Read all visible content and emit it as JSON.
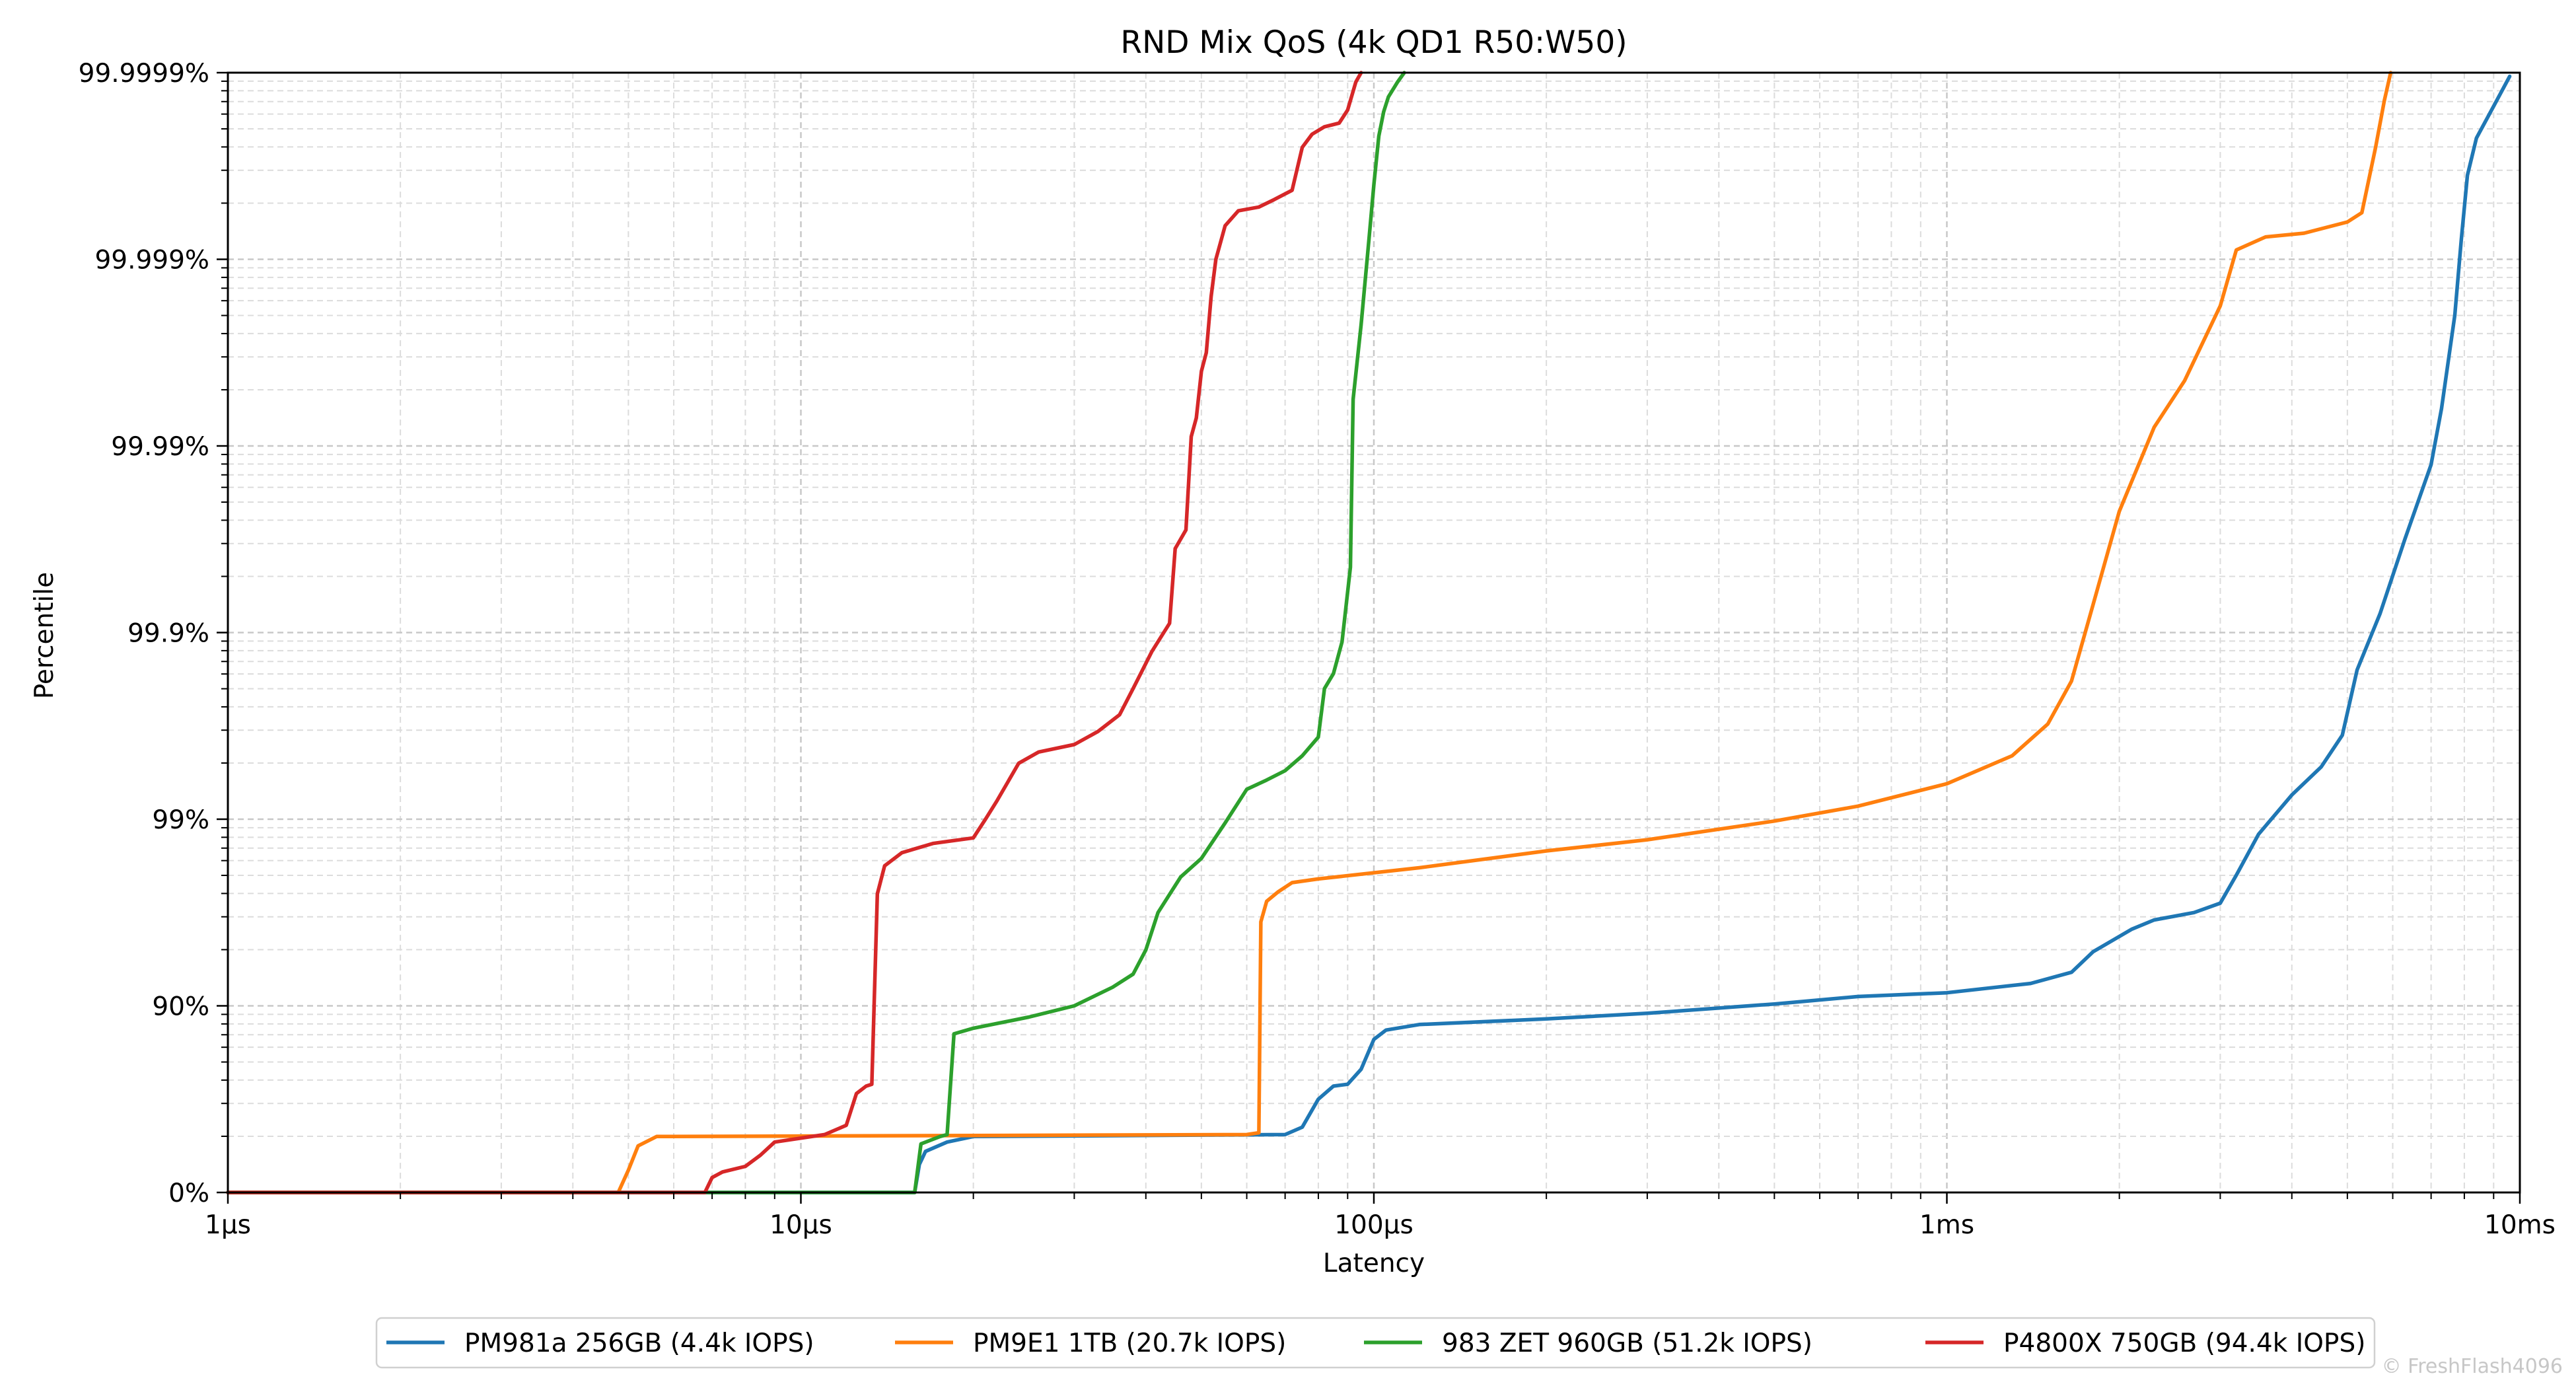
{
  "chart_data": {
    "type": "line",
    "title": "RND Mix QoS (4k QD1 R50:W50)",
    "xlabel": "Latency",
    "ylabel": "Percentile",
    "x_scale": "log",
    "y_scale": "logit-nines",
    "x_unit": "microseconds",
    "xlim": [
      1,
      10000
    ],
    "ylim_nines": [
      0,
      6
    ],
    "grid": true,
    "legend": "bottom-center",
    "x_ticks": [
      {
        "value": 1,
        "label": "1µs"
      },
      {
        "value": 10,
        "label": "10µs"
      },
      {
        "value": 100,
        "label": "100µs"
      },
      {
        "value": 1000,
        "label": "1ms"
      },
      {
        "value": 10000,
        "label": "10ms"
      }
    ],
    "y_ticks": [
      {
        "value": 0,
        "label": "0%"
      },
      {
        "value": 1,
        "label": "90%"
      },
      {
        "value": 2,
        "label": "99%"
      },
      {
        "value": 3,
        "label": "99.9%"
      },
      {
        "value": 4,
        "label": "99.99%"
      },
      {
        "value": 5,
        "label": "99.999%"
      },
      {
        "value": 6,
        "label": "99.9999%"
      }
    ],
    "series": [
      {
        "name": "PM981a 256GB (4.4k IOPS)",
        "color": "#1f77b4",
        "points": [
          [
            1,
            0
          ],
          [
            15.8,
            0
          ],
          [
            16.1,
            0.15
          ],
          [
            16.5,
            0.22
          ],
          [
            18,
            0.27
          ],
          [
            20,
            0.3
          ],
          [
            70,
            0.31
          ],
          [
            75,
            0.35
          ],
          [
            80,
            0.5
          ],
          [
            85,
            0.57
          ],
          [
            90,
            0.58
          ],
          [
            95,
            0.66
          ],
          [
            100,
            0.82
          ],
          [
            105,
            0.87
          ],
          [
            120,
            0.9
          ],
          [
            200,
            0.93
          ],
          [
            300,
            0.96
          ],
          [
            500,
            1.01
          ],
          [
            700,
            1.05
          ],
          [
            1000,
            1.07
          ],
          [
            1400,
            1.12
          ],
          [
            1650,
            1.18
          ],
          [
            1800,
            1.29
          ],
          [
            2100,
            1.41
          ],
          [
            2300,
            1.46
          ],
          [
            2700,
            1.5
          ],
          [
            3000,
            1.55
          ],
          [
            3200,
            1.7
          ],
          [
            3500,
            1.92
          ],
          [
            4000,
            2.13
          ],
          [
            4500,
            2.28
          ],
          [
            4900,
            2.45
          ],
          [
            5200,
            2.8
          ],
          [
            5700,
            3.1
          ],
          [
            6300,
            3.5
          ],
          [
            7000,
            3.9
          ],
          [
            7300,
            4.2
          ],
          [
            7700,
            4.7
          ],
          [
            7900,
            5.1
          ],
          [
            8100,
            5.45
          ],
          [
            8400,
            5.65
          ],
          [
            9000,
            5.82
          ],
          [
            9600,
            5.98
          ]
        ]
      },
      {
        "name": "PM9E1 1TB (20.7k IOPS)",
        "color": "#ff7f0e",
        "points": [
          [
            1,
            0
          ],
          [
            4.8,
            0
          ],
          [
            5,
            0.12
          ],
          [
            5.2,
            0.25
          ],
          [
            5.6,
            0.3
          ],
          [
            60,
            0.31
          ],
          [
            63,
            0.32
          ],
          [
            63.5,
            1.45
          ],
          [
            65,
            1.56
          ],
          [
            68,
            1.61
          ],
          [
            72,
            1.66
          ],
          [
            80,
            1.68
          ],
          [
            120,
            1.74
          ],
          [
            200,
            1.83
          ],
          [
            300,
            1.89
          ],
          [
            500,
            1.99
          ],
          [
            700,
            2.07
          ],
          [
            1000,
            2.19
          ],
          [
            1300,
            2.34
          ],
          [
            1500,
            2.51
          ],
          [
            1650,
            2.74
          ],
          [
            1800,
            3.15
          ],
          [
            2000,
            3.65
          ],
          [
            2300,
            4.1
          ],
          [
            2600,
            4.35
          ],
          [
            3000,
            4.75
          ],
          [
            3200,
            5.05
          ],
          [
            3600,
            5.12
          ],
          [
            4200,
            5.14
          ],
          [
            5000,
            5.2
          ],
          [
            5300,
            5.25
          ],
          [
            5600,
            5.6
          ],
          [
            5800,
            5.85
          ],
          [
            5950,
            6
          ]
        ]
      },
      {
        "name": "983 ZET 960GB (51.2k IOPS)",
        "color": "#2ca02c",
        "points": [
          [
            1,
            0
          ],
          [
            15.8,
            0
          ],
          [
            16.2,
            0.26
          ],
          [
            17.5,
            0.3
          ],
          [
            18,
            0.31
          ],
          [
            18.5,
            0.85
          ],
          [
            20,
            0.88
          ],
          [
            25,
            0.94
          ],
          [
            30,
            1.0
          ],
          [
            35,
            1.1
          ],
          [
            38,
            1.17
          ],
          [
            40,
            1.3
          ],
          [
            42,
            1.5
          ],
          [
            46,
            1.69
          ],
          [
            50,
            1.79
          ],
          [
            55,
            1.98
          ],
          [
            60,
            2.16
          ],
          [
            65,
            2.21
          ],
          [
            70,
            2.26
          ],
          [
            75,
            2.34
          ],
          [
            80,
            2.44
          ],
          [
            82,
            2.7
          ],
          [
            85,
            2.78
          ],
          [
            88,
            2.95
          ],
          [
            91,
            3.35
          ],
          [
            92,
            4.25
          ],
          [
            95,
            4.65
          ],
          [
            98,
            5.1
          ],
          [
            100,
            5.4
          ],
          [
            102,
            5.66
          ],
          [
            104,
            5.79
          ],
          [
            106,
            5.87
          ],
          [
            110,
            5.95
          ],
          [
            113,
            6
          ]
        ]
      },
      {
        "name": "P4800X 750GB (94.4k IOPS)",
        "color": "#d62728",
        "points": [
          [
            1,
            0
          ],
          [
            6.8,
            0
          ],
          [
            7,
            0.08
          ],
          [
            7.3,
            0.11
          ],
          [
            8,
            0.14
          ],
          [
            8.5,
            0.2
          ],
          [
            9,
            0.27
          ],
          [
            11,
            0.31
          ],
          [
            12,
            0.36
          ],
          [
            12.5,
            0.53
          ],
          [
            13,
            0.57
          ],
          [
            13.3,
            0.58
          ],
          [
            13.6,
            1.6
          ],
          [
            14,
            1.75
          ],
          [
            15,
            1.82
          ],
          [
            17,
            1.87
          ],
          [
            20,
            1.9
          ],
          [
            21,
            2.0
          ],
          [
            22,
            2.1
          ],
          [
            24,
            2.3
          ],
          [
            26,
            2.36
          ],
          [
            30,
            2.4
          ],
          [
            33,
            2.47
          ],
          [
            36,
            2.56
          ],
          [
            38,
            2.7
          ],
          [
            41,
            2.9
          ],
          [
            44,
            3.05
          ],
          [
            45,
            3.45
          ],
          [
            47,
            3.55
          ],
          [
            48,
            4.05
          ],
          [
            49,
            4.15
          ],
          [
            50,
            4.4
          ],
          [
            51,
            4.5
          ],
          [
            52,
            4.8
          ],
          [
            53,
            5.0
          ],
          [
            55,
            5.18
          ],
          [
            58,
            5.26
          ],
          [
            63,
            5.28
          ],
          [
            67,
            5.32
          ],
          [
            72,
            5.37
          ],
          [
            75,
            5.6
          ],
          [
            78,
            5.67
          ],
          [
            82,
            5.71
          ],
          [
            87,
            5.73
          ],
          [
            90,
            5.8
          ],
          [
            93,
            5.95
          ],
          [
            95,
            6
          ]
        ]
      }
    ]
  },
  "watermark": "© FreshFlash4096"
}
